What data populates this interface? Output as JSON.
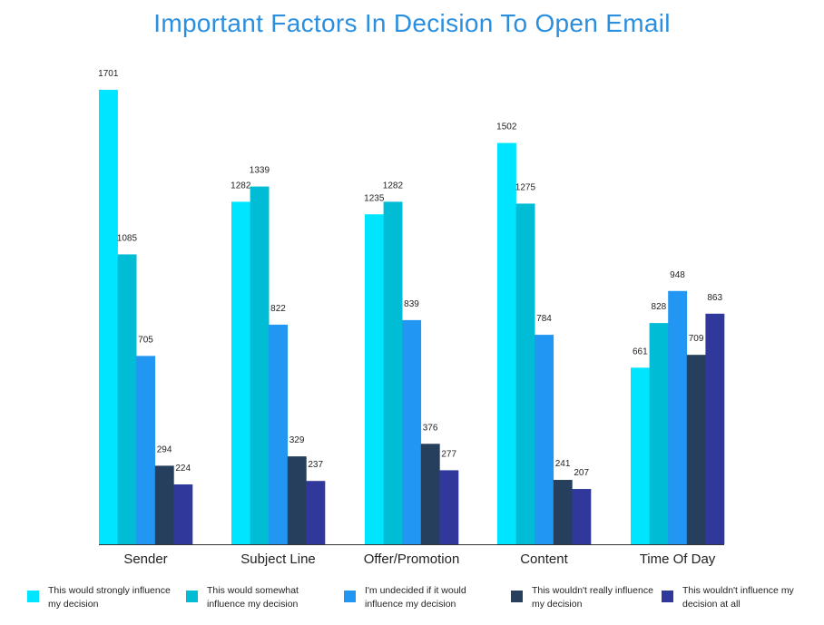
{
  "chart_data": {
    "type": "bar",
    "title": "Important Factors In Decision To Open Email",
    "categories": [
      "Sender",
      "Subject Line",
      "Offer/Promotion",
      "Content",
      "Time Of Day"
    ],
    "series": [
      {
        "name": "This would strongly influence my decision",
        "color": "#00e5ff",
        "values": [
          1701,
          1282,
          1235,
          1502,
          661
        ]
      },
      {
        "name": "This would somewhat influence my decision",
        "color": "#00bcd4",
        "values": [
          1085,
          1339,
          1282,
          1275,
          828
        ]
      },
      {
        "name": "I'm undecided if it would influence my decision",
        "color": "#2196f3",
        "values": [
          705,
          822,
          839,
          784,
          948
        ]
      },
      {
        "name": "This wouldn't really influence my decision",
        "color": "#263f5c",
        "values": [
          294,
          329,
          376,
          241,
          709
        ]
      },
      {
        "name": "This wouldn't influence my decision at all",
        "color": "#30399b",
        "values": [
          224,
          237,
          277,
          207,
          863
        ]
      }
    ],
    "ylim": [
      0,
      1701
    ],
    "xlabel": "",
    "ylabel": "",
    "grid": false,
    "legend": "bottom",
    "data_labels": true
  }
}
